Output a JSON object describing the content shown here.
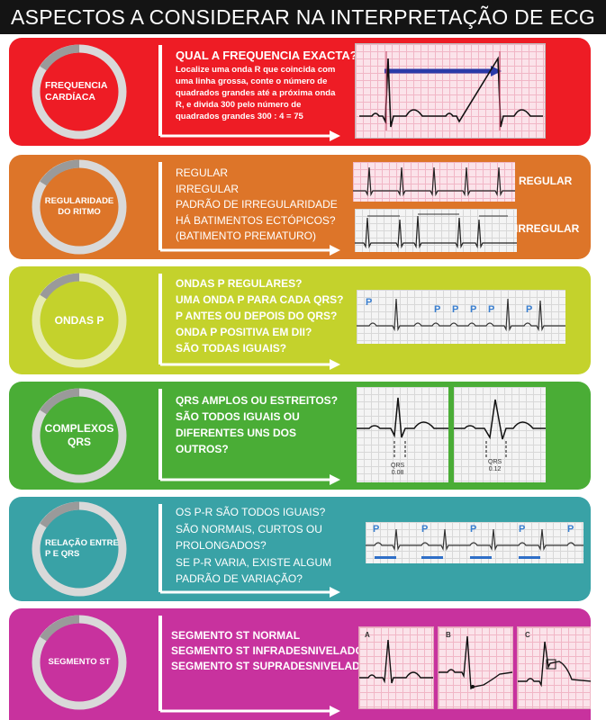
{
  "title": "ASPECTOS A CONSIDERAR NA INTERPRETAÇÃO DE ECG",
  "colors": {
    "row1": "#ee1c25",
    "row2": "#dd7529",
    "row3": "#c4d22c",
    "row4": "#4aad36",
    "row5": "#39a2a6",
    "row6": "#c8329e"
  },
  "rows": [
    {
      "label_lines": [
        "FREQUENCIA",
        "CARDÍACA"
      ],
      "heading": "QUAL A FREQUENCIA EXACTA?",
      "lines": [
        "Localize uma onda R que coincida com",
        "uma linha grossa, conte o número de",
        "quadrados grandes até a próxima onda",
        "R, e divida 300 pelo número de",
        "quadrados grandes 300 : 4 = 75"
      ]
    },
    {
      "label_lines": [
        "REGULARIDADE",
        "DO RITMO"
      ],
      "lines": [
        "REGULAR",
        "IRREGULAR",
        "PADRÃO DE IRREGULARIDADE",
        "HÁ BATIMENTOS ECTÓPICOS?",
        "(BATIMENTO PREMATURO)"
      ],
      "side_labels": [
        "REGULAR",
        "IRREGULAR"
      ]
    },
    {
      "label_lines": [
        "ONDAS P"
      ],
      "lines": [
        "ONDAS P REGULARES?",
        "UMA ONDA P PARA CADA QRS?",
        "P ANTES OU DEPOIS DO QRS?",
        "ONDA P POSITIVA EM DII?",
        "SÃO TODAS IGUAIS?"
      ],
      "p_marker": "P"
    },
    {
      "label_lines": [
        "COMPLEXOS",
        "QRS"
      ],
      "lines": [
        "QRS AMPLOS OU ESTREITOS?",
        "SÃO TODOS IGUAIS OU",
        "DIFERENTES UNS DOS",
        "OUTROS?"
      ],
      "qrs_labels": [
        {
          "name": "QRS",
          "value": "0.08"
        },
        {
          "name": "QRS",
          "value": "0.12"
        }
      ]
    },
    {
      "label_lines": [
        "RELAÇÃO ENTRE",
        "P E QRS"
      ],
      "lines": [
        "OS P-R SÃO TODOS IGUAIS?",
        "SÃO NORMAIS, CURTOS OU",
        "PROLONGADOS?",
        "SE P-R VARIA, EXISTE ALGUM",
        "PADRÃO DE VARIAÇÃO?"
      ],
      "p_marker": "P"
    },
    {
      "label_lines": [
        "SEGMENTO ST"
      ],
      "lines": [
        "SEGMENTO ST NORMAL",
        "SEGMENTO ST INFRADESNIVELADO",
        "SEGMENTO ST SUPRADESNIVELADO"
      ],
      "panel_letters": [
        "A",
        "B",
        "C"
      ]
    }
  ]
}
